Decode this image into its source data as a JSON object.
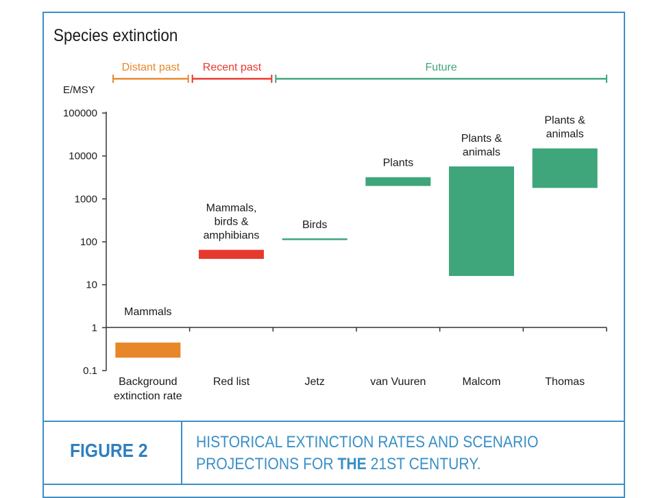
{
  "figure": {
    "label": "FIGURE 2",
    "caption_part1": "HISTORICAL EXTINCTION RATES AND SCENARIO PROJECTIONS FOR ",
    "caption_bold": "THE",
    "caption_part2": " 21ST CENTURY."
  },
  "colors": {
    "distant": "#e8872a",
    "recent": "#e8392f",
    "future": "#3fa57a",
    "frame": "#3a8fc6"
  },
  "chart_data": {
    "type": "bar",
    "title": "Species extinction",
    "ylabel": "E/MSY",
    "yscale": "log",
    "ylim": [
      0.1,
      100000
    ],
    "yticks": [
      {
        "value": 0.1,
        "label": "0.1"
      },
      {
        "value": 1,
        "label": "1"
      },
      {
        "value": 10,
        "label": "10"
      },
      {
        "value": 100,
        "label": "100"
      },
      {
        "value": 1000,
        "label": "1000"
      },
      {
        "value": 10000,
        "label": "10000"
      },
      {
        "value": 100000,
        "label": "100000"
      }
    ],
    "categories": [
      "Background extinction rate",
      "Red list",
      "Jetz",
      "van Vuuren",
      "Malcom",
      "Thomas"
    ],
    "category_lines": [
      [
        "Background",
        "extinction rate"
      ],
      [
        "Red list"
      ],
      [
        "Jetz"
      ],
      [
        "van Vuuren"
      ],
      [
        "Malcom"
      ],
      [
        "Thomas"
      ]
    ],
    "periods": [
      {
        "label": "Distant past",
        "from": 0,
        "to": 1,
        "color": "#e8872a"
      },
      {
        "label": "Recent past",
        "from": 1,
        "to": 2,
        "color": "#e8392f"
      },
      {
        "label": "Future",
        "from": 2,
        "to": 6,
        "color": "#3fa57a"
      }
    ],
    "bars": [
      {
        "category": "Background extinction rate",
        "low": 0.2,
        "high": 0.45,
        "color": "#e8872a",
        "label_lines": [
          "Mammals"
        ]
      },
      {
        "category": "Red list",
        "low": 40,
        "high": 65,
        "color": "#e8392f",
        "label_lines": [
          "Mammals,",
          "birds &",
          "amphibians"
        ]
      },
      {
        "category": "Jetz",
        "low": 115,
        "high": 115,
        "color": "#3fa57a",
        "label_lines": [
          "Birds"
        ]
      },
      {
        "category": "van Vuuren",
        "low": 2000,
        "high": 3200,
        "color": "#3fa57a",
        "label_lines": [
          "Plants"
        ]
      },
      {
        "category": "Malcom",
        "low": 16,
        "high": 5700,
        "color": "#3fa57a",
        "label_lines": [
          "Plants &",
          "animals"
        ]
      },
      {
        "category": "Thomas",
        "low": 1800,
        "high": 15000,
        "color": "#3fa57a",
        "label_lines": [
          "Plants &",
          "animals"
        ]
      }
    ]
  }
}
